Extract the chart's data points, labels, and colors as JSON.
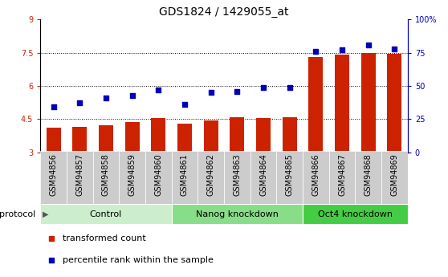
{
  "title": "GDS1824 / 1429055_at",
  "samples": [
    "GSM94856",
    "GSM94857",
    "GSM94858",
    "GSM94859",
    "GSM94860",
    "GSM94861",
    "GSM94862",
    "GSM94863",
    "GSM94864",
    "GSM94865",
    "GSM94866",
    "GSM94867",
    "GSM94868",
    "GSM94869"
  ],
  "transformed_count": [
    4.1,
    4.15,
    4.22,
    4.38,
    4.55,
    4.28,
    4.45,
    4.6,
    4.55,
    4.6,
    7.3,
    7.42,
    7.48,
    7.46
  ],
  "percentile_rank": [
    34,
    37,
    41,
    43,
    47,
    36,
    45,
    46,
    49,
    49,
    76,
    77,
    81,
    78
  ],
  "ylim_left": [
    3,
    9
  ],
  "ylim_right": [
    0,
    100
  ],
  "yticks_left": [
    3,
    4.5,
    6.0,
    7.5,
    9
  ],
  "yticks_right": [
    0,
    25,
    50,
    75,
    100
  ],
  "ytick_labels_left": [
    "3",
    "4.5",
    "6",
    "7.5",
    "9"
  ],
  "ytick_labels_right": [
    "0",
    "25",
    "50",
    "75",
    "100%"
  ],
  "hlines": [
    4.5,
    6.0,
    7.5
  ],
  "bar_color": "#cc2200",
  "dot_color": "#0000bb",
  "groups": [
    {
      "label": "Control",
      "start": 0,
      "end": 4,
      "color": "#cceecc"
    },
    {
      "label": "Nanog knockdown",
      "start": 5,
      "end": 9,
      "color": "#88dd88"
    },
    {
      "label": "Oct4 knockdown",
      "start": 10,
      "end": 13,
      "color": "#44cc44"
    }
  ],
  "protocol_label": "protocol",
  "legend_bar_label": "transformed count",
  "legend_dot_label": "percentile rank within the sample",
  "title_fontsize": 10,
  "tick_fontsize": 7,
  "group_fontsize": 8,
  "legend_fontsize": 8,
  "bar_width": 0.55,
  "xtick_bg_color": "#cccccc",
  "spine_color": "#000000"
}
